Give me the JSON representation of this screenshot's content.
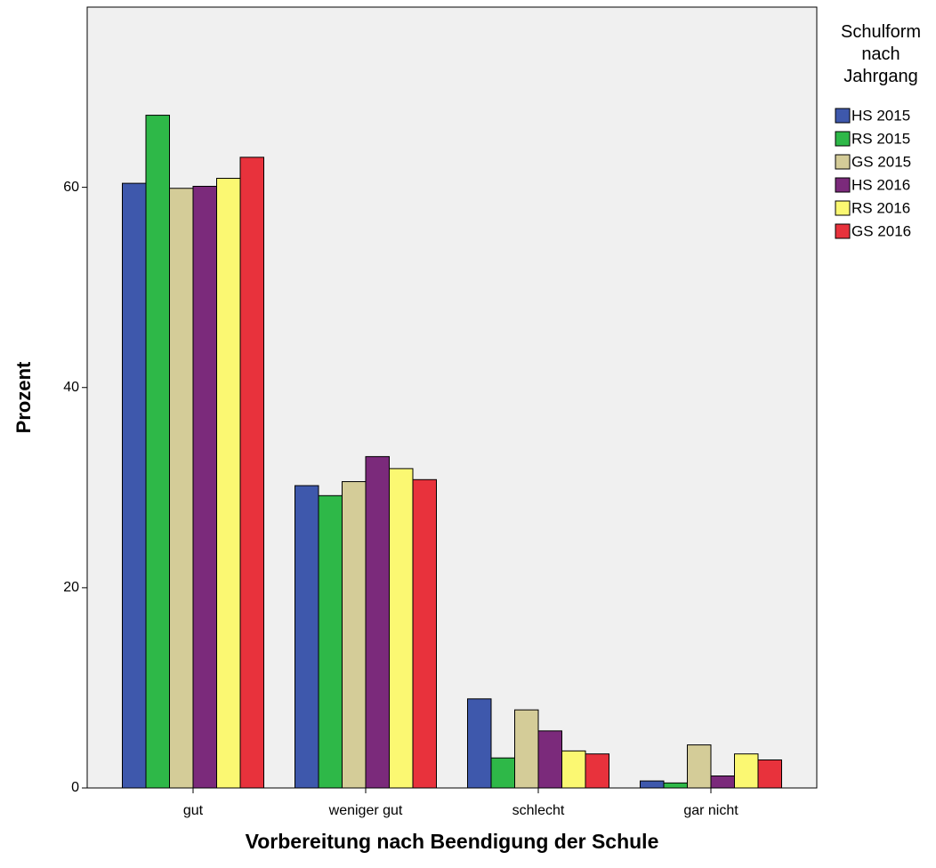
{
  "chart_data": {
    "type": "bar",
    "y_label": "Prozent",
    "x_label": "Vorbereitung nach Beendigung der Schule",
    "legend_title": "Schulform nach Jahrgang",
    "legend": "right",
    "categories": [
      "gut",
      "weniger gut",
      "schlecht",
      "gar nicht"
    ],
    "series": [
      {
        "name": "HS 2015",
        "color": "#3e58ac",
        "values": [
          60.4,
          30.2,
          8.9,
          0.7
        ]
      },
      {
        "name": "RS 2015",
        "color": "#2eb848",
        "values": [
          67.2,
          29.2,
          3.0,
          0.5
        ]
      },
      {
        "name": "GS 2015",
        "color": "#d4cc98",
        "values": [
          59.9,
          30.6,
          7.8,
          4.3
        ]
      },
      {
        "name": "HS 2016",
        "color": "#7b2a7b",
        "values": [
          60.1,
          33.1,
          5.7,
          1.2
        ]
      },
      {
        "name": "RS 2016",
        "color": "#fbf872",
        "values": [
          60.9,
          31.9,
          3.7,
          3.4
        ]
      },
      {
        "name": "GS 2016",
        "color": "#e8323c",
        "values": [
          63.0,
          30.8,
          3.4,
          2.8
        ]
      }
    ],
    "ylim": [
      0,
      78
    ],
    "yticks": [
      0,
      20,
      40,
      60
    ]
  }
}
